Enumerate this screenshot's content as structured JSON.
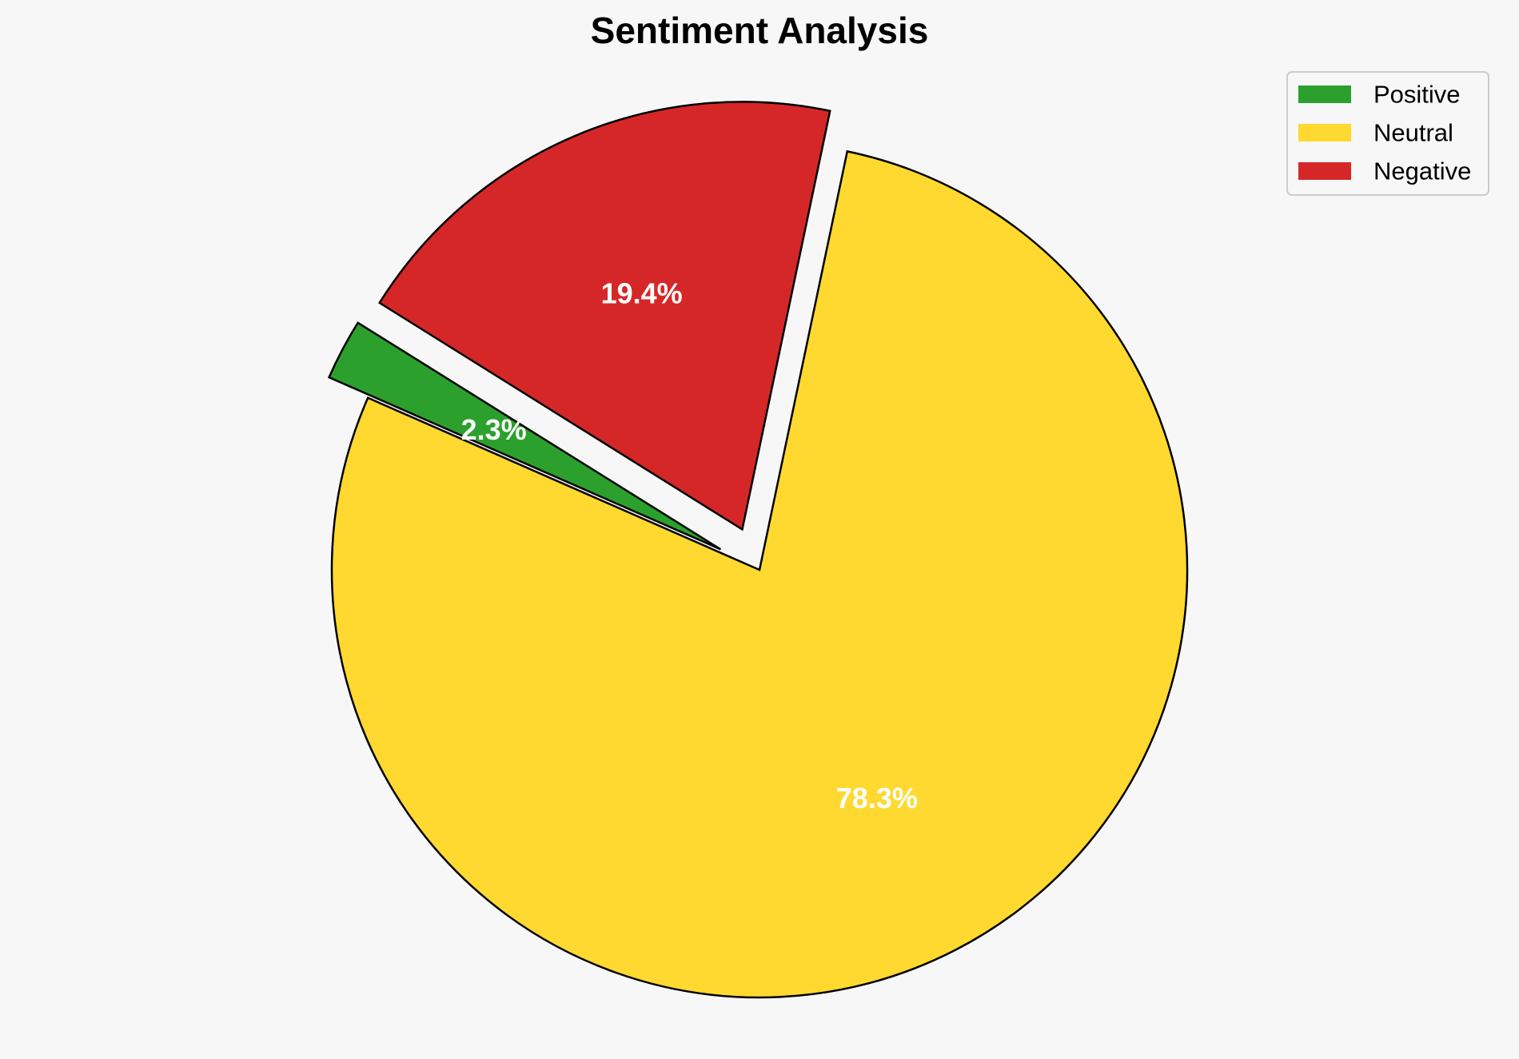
{
  "chart_data": {
    "type": "pie",
    "title": "Sentiment Analysis",
    "categories": [
      "Positive",
      "Neutral",
      "Negative"
    ],
    "values": [
      2.3,
      78.3,
      19.4
    ],
    "value_labels": [
      "2.3%",
      "78.3%",
      "19.4%"
    ],
    "colors": [
      "#2ca02c",
      "#ffd92f",
      "#d62728"
    ],
    "exploded": [
      "Positive",
      "Negative"
    ],
    "start_angle_deg": 148,
    "direction": "counterclockwise",
    "edge_color": "#000000",
    "background": "#f7f7f7",
    "legend": {
      "position": "top-right",
      "entries": [
        "Positive",
        "Neutral",
        "Negative"
      ]
    }
  }
}
